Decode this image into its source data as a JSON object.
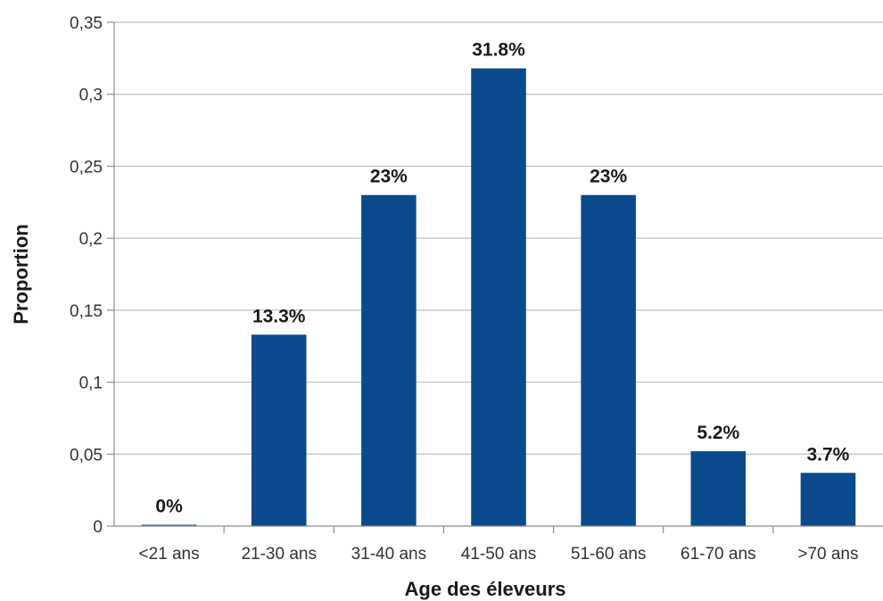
{
  "chart_data": {
    "type": "bar",
    "categories": [
      "<21 ans",
      "21-30 ans",
      "31-40 ans",
      "41-50 ans",
      "51-60 ans",
      "61-70 ans",
      ">70 ans"
    ],
    "values": [
      0.0,
      0.133,
      0.23,
      0.318,
      0.23,
      0.052,
      0.037
    ],
    "data_labels": [
      "0%",
      "13.3%",
      "23%",
      "31.8%",
      "23%",
      "5.2%",
      "3.7%"
    ],
    "title": "",
    "xlabel": "Age des éleveurs",
    "ylabel": "Proportion",
    "ylim": [
      0,
      0.35
    ],
    "yticks": [
      0,
      0.05,
      0.1,
      0.15,
      0.2,
      0.25,
      0.3,
      0.35
    ],
    "ytick_labels": [
      "0",
      "0,05",
      "0,1",
      "0,15",
      "0,2",
      "0,25",
      "0,3",
      "0,35"
    ],
    "grid": true,
    "legend": "none",
    "bar_color": "#0b4a8c"
  }
}
